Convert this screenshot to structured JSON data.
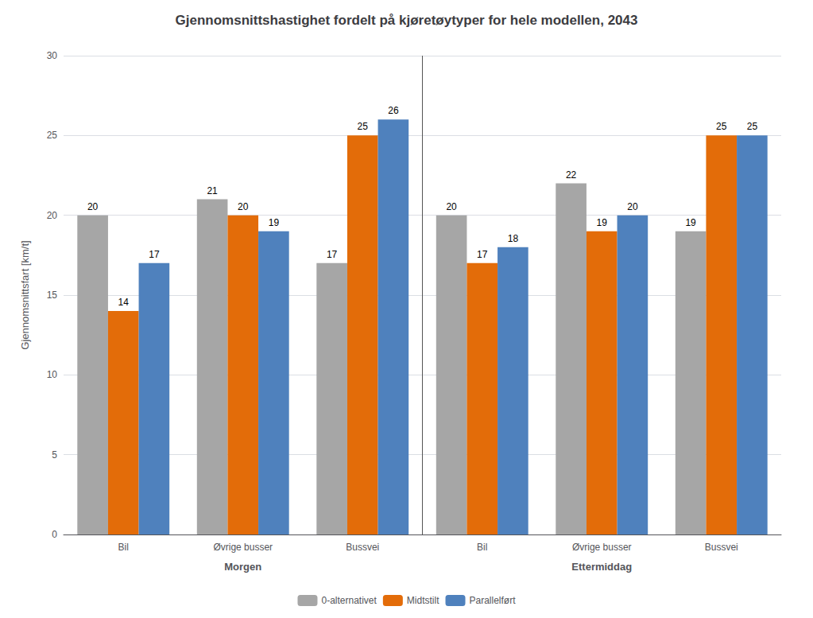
{
  "chart_data": {
    "type": "bar",
    "title": "Gjennomsnittshastighet fordelt på kjøretøytyper for hele modellen, 2043",
    "ylabel": "Gjennomsnittsfart [km/t]",
    "categories": [
      "Bil",
      "Øvrige busser",
      "Bussvei",
      "Bil",
      "Øvrige busser",
      "Bussvei"
    ],
    "annotations": [
      "Morgen",
      "Ettermiddag"
    ],
    "series": [
      {
        "name": "0-alternativet",
        "color": "#a6a6a6",
        "values": [
          20,
          21,
          17,
          20,
          22,
          19
        ]
      },
      {
        "name": "Midtstilt",
        "color": "#e36c09",
        "values": [
          14,
          20,
          25,
          17,
          19,
          25
        ]
      },
      {
        "name": "Parallelført",
        "color": "#4f81bd",
        "values": [
          17,
          19,
          26,
          18,
          20,
          25
        ]
      }
    ],
    "ylim": [
      0,
      30
    ],
    "yticks": [
      0,
      5,
      10,
      15,
      20,
      25,
      30
    ],
    "grid": true,
    "legend": "bottom",
    "data_labels": true
  }
}
